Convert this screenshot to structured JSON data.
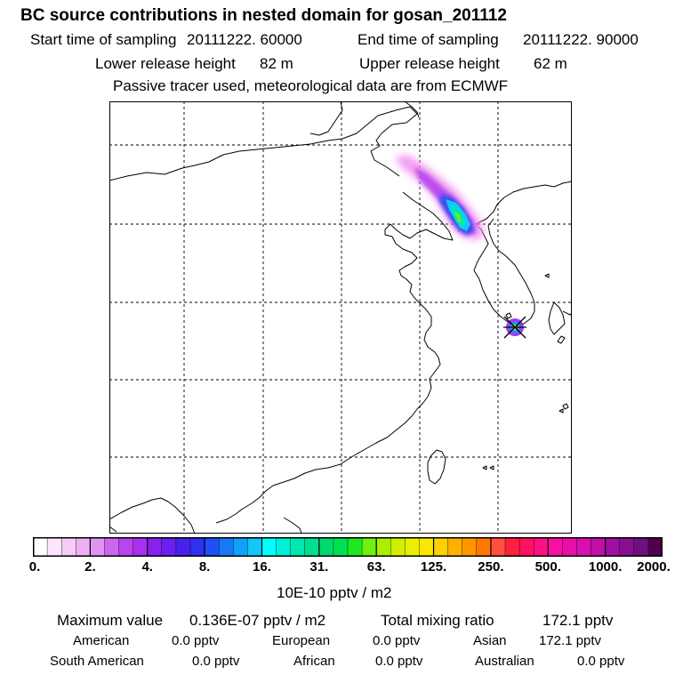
{
  "title": "BC  source contributions in nested domain for gosan_201112",
  "sampling": {
    "start_label": "Start time of sampling",
    "start_value": "20111222. 60000",
    "end_label": "End time of sampling",
    "end_value": "20111222. 90000"
  },
  "release": {
    "lower_label": "Lower release height",
    "lower_value": "82 m",
    "upper_label": "Upper release height",
    "upper_value": "62 m"
  },
  "tracer_note": "Passive tracer used, meteorological data are from ECMWF",
  "colorbar": {
    "tick_labels": [
      "0.",
      "2.",
      "4.",
      "8.",
      "16.",
      "31.",
      "63.",
      "125.",
      "250.",
      "500.",
      "1000.",
      "2000."
    ],
    "unit": "10E-10 pptv / m2",
    "colors": [
      "#ffffff",
      "#fbe6fb",
      "#f5ccf6",
      "#eeb1f2",
      "#e093f0",
      "#cc66ee",
      "#bb44ee",
      "#a830ee",
      "#8a20ee",
      "#6a20ee",
      "#4a20ee",
      "#3030f0",
      "#2050f5",
      "#1878f8",
      "#10a0fb",
      "#10c8fc",
      "#00ffff",
      "#00f0d8",
      "#00e8b0",
      "#00e090",
      "#00d870",
      "#00e050",
      "#20e820",
      "#70f010",
      "#a8f000",
      "#d0f000",
      "#e8f000",
      "#f8e800",
      "#ffd000",
      "#ffb000",
      "#ff9800",
      "#ff7800",
      "#ff5040",
      "#ff2040",
      "#ff1060",
      "#ff1080",
      "#f810a0",
      "#e810a8",
      "#d810b0",
      "#c010a8",
      "#a010a0",
      "#881090",
      "#701080",
      "#500050"
    ]
  },
  "summary": {
    "max_label": "Maximum value",
    "max_value": "0.136E-07 pptv / m2",
    "total_label": "Total mixing ratio",
    "total_value": "172.1 pptv"
  },
  "regions": [
    {
      "name": "American",
      "value": "0.0 pptv"
    },
    {
      "name": "European",
      "value": "0.0 pptv"
    },
    {
      "name": "Asian",
      "value": "172.1 pptv"
    },
    {
      "name": "South American",
      "value": "0.0 pptv"
    },
    {
      "name": "African",
      "value": "0.0 pptv"
    },
    {
      "name": "Australian",
      "value": "0.0 pptv"
    }
  ]
}
